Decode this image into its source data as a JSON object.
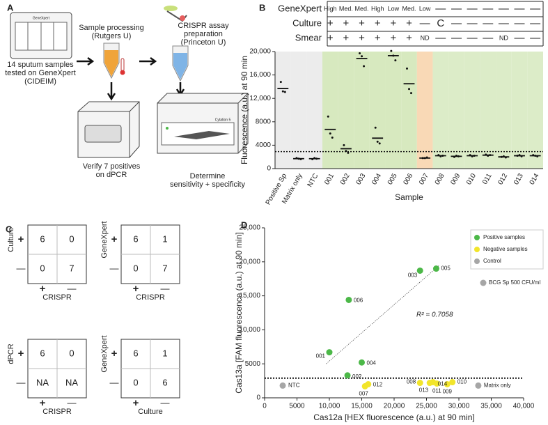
{
  "panel_a": {
    "label": "A",
    "instrument_1": "GeneXpert",
    "step_1": [
      "14 sputum samples",
      "tested on GeneXpert",
      "(CIDEIM)"
    ],
    "step_2": [
      "Sample processing",
      "(Rutgers U)"
    ],
    "step_3": [
      "CRISPR assay",
      "preparation",
      "(Princeton U)"
    ],
    "step_4": [
      "Verify 7 positives",
      "on dPCR"
    ],
    "instrument_2": "Cytation 5",
    "step_5": [
      "Determine",
      "sensitivity + specificity"
    ]
  },
  "panel_c": {
    "label": "C",
    "plus": "+",
    "minus": "—",
    "tables": [
      {
        "row_label": "Culture",
        "col_label": "CRISPR",
        "cells": [
          [
            6,
            0
          ],
          [
            0,
            7
          ]
        ]
      },
      {
        "row_label": "GeneXpert",
        "col_label": "CRISPR",
        "cells": [
          [
            6,
            1
          ],
          [
            0,
            7
          ]
        ]
      },
      {
        "row_label": "dPCR",
        "col_label": "CRISPR",
        "cells": [
          [
            6,
            0
          ],
          [
            "NA",
            "NA"
          ]
        ]
      },
      {
        "row_label": "GeneXpert",
        "col_label": "Culture",
        "cells": [
          [
            6,
            1
          ],
          [
            0,
            6
          ]
        ]
      }
    ]
  },
  "chart_data": [
    {
      "type": "dotplot",
      "panel_label": "B",
      "xlabel": "Sample",
      "ylabel": "Fluorescence (a.u.) at 90 min",
      "categories": [
        "Positive Sp",
        "Matrix only",
        "NTC",
        "001",
        "002",
        "003",
        "004",
        "005",
        "006",
        "007",
        "008",
        "009",
        "010",
        "011",
        "012",
        "013",
        "014"
      ],
      "values": [
        13700,
        1700,
        1700,
        6700,
        3400,
        18800,
        5200,
        19300,
        14500,
        1800,
        2200,
        2100,
        2200,
        2300,
        2000,
        2200,
        2200
      ],
      "replicates": [
        [
          14800,
          13200,
          13100
        ],
        [
          1800,
          1700,
          1600
        ],
        [
          1600,
          1800,
          1700
        ],
        [
          8900,
          6000,
          5300
        ],
        [
          4000,
          3000,
          2700
        ],
        [
          19700,
          19200,
          17500
        ],
        [
          7000,
          4600,
          4300
        ],
        [
          20100,
          19300,
          18500
        ],
        [
          17100,
          13600,
          12900
        ],
        [
          1800,
          1800,
          1900
        ],
        [
          2300,
          2100,
          2200
        ],
        [
          2000,
          2200,
          2100
        ],
        [
          2300,
          2100,
          2200
        ],
        [
          2400,
          2200,
          2300
        ],
        [
          2000,
          2100,
          1900
        ],
        [
          2200,
          2300,
          2100
        ],
        [
          2300,
          2200,
          2100
        ]
      ],
      "band_colors": [
        "#ececec",
        "#ececec",
        "#ececec",
        "#d7e9bf",
        "#d7e9bf",
        "#d7e9bf",
        "#d7e9bf",
        "#d7e9bf",
        "#d7e9bf",
        "#f9d9b6",
        "#dcecc8",
        "#dcecc8",
        "#dcecc8",
        "#dcecc8",
        "#dcecc8",
        "#dcecc8",
        "#dcecc8"
      ],
      "color": "#111111",
      "ylim": [
        0,
        20000
      ],
      "yticks": [
        0,
        4000,
        8000,
        {
          "value": 12000,
          "label": "12,000"
        },
        {
          "value": 16000,
          "label": "16,000"
        },
        {
          "value": 20000,
          "label": "20,000"
        }
      ],
      "threshold": 2900,
      "table": {
        "rows": [
          {
            "name": "GeneXpert",
            "cells": [
              "High",
              "Med.",
              "Med.",
              "High",
              "Low",
              "Med.",
              "Low",
              "—",
              "—",
              "—",
              "—",
              "—",
              "—",
              "—"
            ]
          },
          {
            "name": "Culture",
            "cells": [
              "+",
              "+",
              "+",
              "+",
              "+",
              "+",
              "—",
              "C",
              "—",
              "—",
              "—",
              "—",
              "—",
              "—"
            ]
          },
          {
            "name": "Smear",
            "cells": [
              "+",
              "+",
              "+",
              "+",
              "+",
              "+",
              "ND",
              "—",
              "—",
              "—",
              "—",
              "ND",
              "—",
              "—"
            ]
          }
        ]
      }
    },
    {
      "type": "scatter",
      "panel_label": "D",
      "xlabel": "Cas12a [HEX fluorescence (a.u.) at 90 min]",
      "ylabel": "Cas13a [FAM fluorescence (a.u.) at 90 min]",
      "xlim": [
        0,
        40000
      ],
      "xticks": [
        0,
        5000,
        {
          "value": 10000,
          "label": "10,000"
        },
        {
          "value": 15000,
          "label": "15,000"
        },
        {
          "value": 20000,
          "label": "20,000"
        },
        {
          "value": 25000,
          "label": "25,000"
        },
        {
          "value": 30000,
          "label": "30,000"
        },
        {
          "value": 35000,
          "label": "35,000"
        },
        {
          "value": 40000,
          "label": "40,000"
        }
      ],
      "ylim": [
        0,
        25000
      ],
      "yticks": [
        0,
        5000,
        {
          "value": 10000,
          "label": "10,000"
        },
        {
          "value": 15000,
          "label": "15,000"
        },
        {
          "value": 20000,
          "label": "20,000"
        },
        {
          "value": 25000,
          "label": "25,000"
        }
      ],
      "series": [
        {
          "name": "Positive samples",
          "color": "#4cb848",
          "labels": [
            "001",
            "002",
            "003",
            "004",
            "005",
            "006"
          ],
          "x": [
            10000,
            12800,
            24000,
            15000,
            26500,
            13000
          ],
          "values": [
            6700,
            3300,
            18700,
            5200,
            19000,
            14400
          ]
        },
        {
          "name": "Negative samples",
          "color": "#f2e52a",
          "labels": [
            "007",
            "008",
            "009",
            "010",
            "011",
            "012",
            "013",
            "014"
          ],
          "x": [
            15500,
            24000,
            28200,
            29000,
            26600,
            16000,
            25500,
            26000
          ],
          "values": [
            1700,
            2200,
            2000,
            2300,
            2100,
            2000,
            2200,
            2300
          ]
        },
        {
          "name": "Control",
          "color": "#a6a6a6",
          "labels": [
            "NTC",
            "Matrix only"
          ],
          "x": [
            2800,
            33000
          ],
          "values": [
            1800,
            1800
          ]
        }
      ],
      "fit_line": {
        "x": [
          9500,
          27000
        ],
        "y": [
          5000,
          19500
        ]
      },
      "fit_label": "R² = 0.7058",
      "annotation": "BCG Sp 500 CFU/ml",
      "threshold": 2900,
      "legend": "upper right"
    }
  ]
}
